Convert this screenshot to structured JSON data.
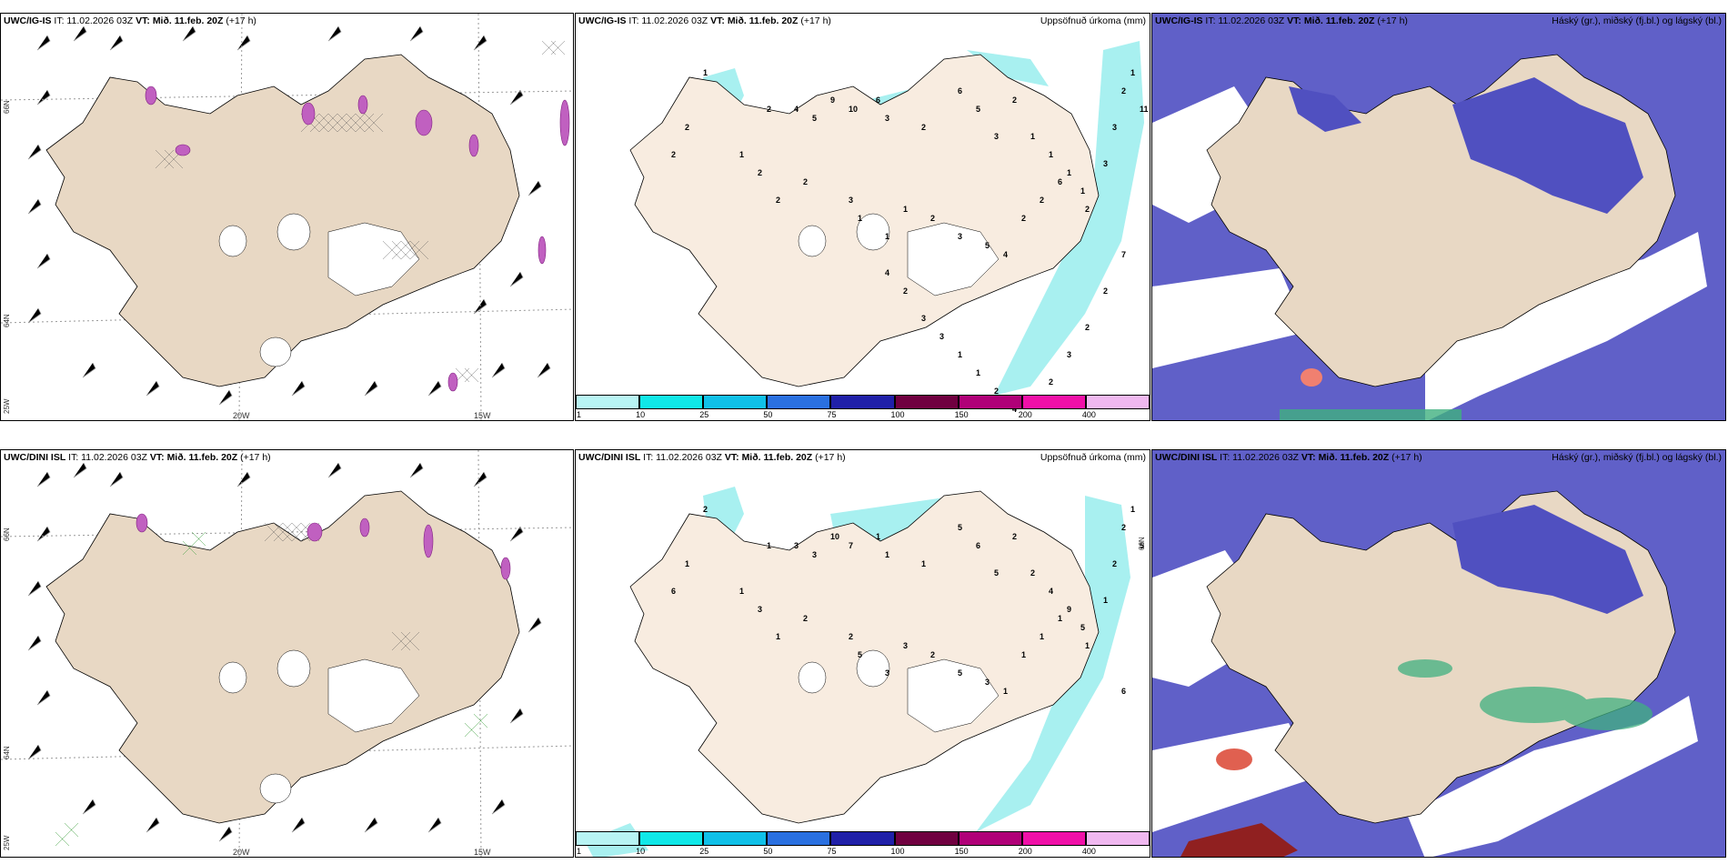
{
  "panels": {
    "p1": {
      "model": "UWC/IG-IS",
      "it": "IT: 11.02.2026 03Z",
      "vt_label": "VT:",
      "vt": "Mið. 11.feb. 20Z",
      "lead": "(+17 h)"
    },
    "p2": {
      "model": "UWC/IG-IS",
      "it": "IT: 11.02.2026 03Z",
      "vt_label": "VT:",
      "vt": "Mið. 11.feb. 20Z",
      "lead": "(+17 h)",
      "title": "Uppsöfnuð úrkoma (mm)"
    },
    "p3": {
      "model": "UWC/IG-IS",
      "it": "IT: 11.02.2026 03Z",
      "vt_label": "VT:",
      "vt": "Mið. 11.feb. 20Z",
      "lead": "(+17 h)",
      "title": "Háský (gr.), miðský (fj.bl.) og lágský (bl.)"
    },
    "p4": {
      "model": "UWC/DINI ISL",
      "it": "IT: 11.02.2026 03Z",
      "vt_label": "VT:",
      "vt": "Mið. 11.feb. 20Z",
      "lead": "(+17 h)"
    },
    "p5": {
      "model": "UWC/DINI ISL",
      "it": "IT: 11.02.2026 03Z",
      "vt_label": "VT:",
      "vt": "Mið. 11.feb. 20Z",
      "lead": "(+17 h)",
      "title": "Uppsöfnuð úrkoma (mm)"
    },
    "p6": {
      "model": "UWC/DINI ISL",
      "it": "IT: 11.02.2026 03Z",
      "vt_label": "VT:",
      "vt": "Mið. 11.feb. 20Z",
      "lead": "(+17 h)",
      "title": "Háský (gr.), miðský (fj.bl.) og lágský (bl.)"
    }
  },
  "axis_labels": {
    "lon_20w": "20W",
    "lon_15w": "15W",
    "lat_66n": "66N",
    "lat_64n": "64N",
    "lat_25w": "25W",
    "lat_62n": "66N"
  },
  "colorbar": {
    "ticks": [
      "1",
      "10",
      "25",
      "50",
      "75",
      "100",
      "150",
      "200",
      "400"
    ],
    "colors": [
      "#b8f4f4",
      "#10e8e8",
      "#10c0e8",
      "#2a70e0",
      "#2020a8",
      "#700040",
      "#b00078",
      "#f010a8",
      "#f0b8f0"
    ]
  },
  "precip_top": [
    "1",
    "2",
    "2",
    "1",
    "2",
    "4",
    "5",
    "9",
    "10",
    "6",
    "3",
    "2",
    "6",
    "5",
    "3",
    "2",
    "1",
    "1",
    "1",
    "1",
    "2",
    "2",
    "2",
    "3",
    "1",
    "1",
    "1",
    "2",
    "3",
    "5",
    "4",
    "2",
    "2",
    "6",
    "2",
    "3",
    "3",
    "2",
    "1",
    "11",
    "7",
    "2",
    "2",
    "3",
    "2",
    "4",
    "4",
    "2",
    "1",
    "1",
    "3",
    "3",
    "2",
    "4"
  ],
  "precip_bot": [
    "2",
    "1",
    "6",
    "1",
    "1",
    "3",
    "3",
    "10",
    "7",
    "1",
    "1",
    "1",
    "5",
    "6",
    "5",
    "2",
    "2",
    "4",
    "9",
    "5",
    "3",
    "1",
    "2",
    "2",
    "5",
    "3",
    "3",
    "2",
    "5",
    "3",
    "1",
    "1",
    "1",
    "1",
    "1",
    "1",
    "2",
    "2",
    "1",
    "5",
    "6"
  ],
  "colors": {
    "land": "#e8d8c4",
    "land_light": "#f8ece0",
    "cloud_mid": "#6060c8",
    "cloud_low": "#f0f0ff",
    "precip_light": "#a8f0f0"
  }
}
